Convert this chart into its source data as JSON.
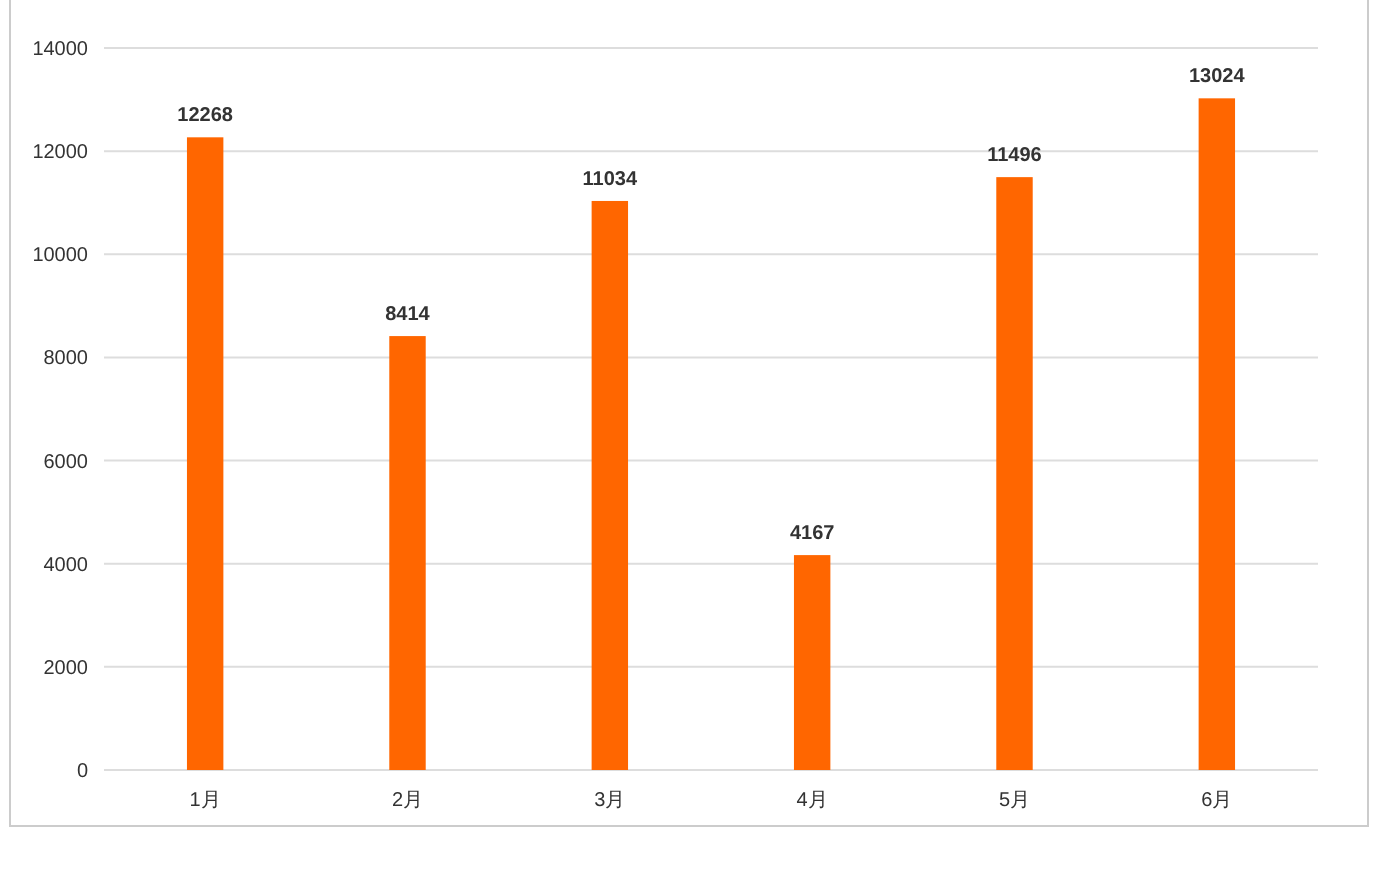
{
  "chart_data": {
    "type": "bar",
    "categories": [
      "1月",
      "2月",
      "3月",
      "4月",
      "5月",
      "6月"
    ],
    "values": [
      12268,
      8414,
      11034,
      4167,
      11496,
      13024
    ],
    "color": "#ff6600",
    "ylim": [
      0,
      14000
    ],
    "yticks": [
      0,
      2000,
      4000,
      6000,
      8000,
      10000,
      12000,
      14000
    ],
    "grid": "y",
    "data_labels": true
  }
}
